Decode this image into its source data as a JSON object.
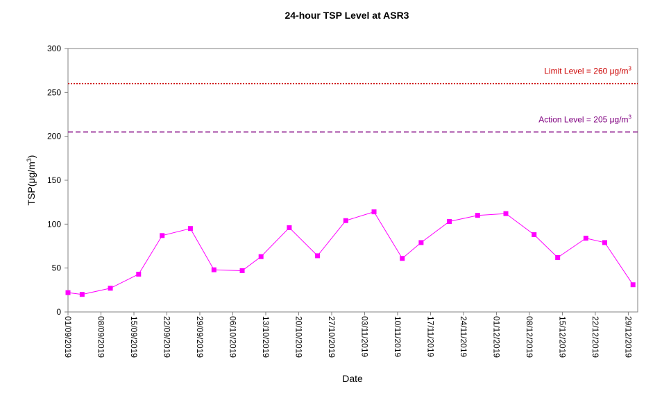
{
  "chart_data": {
    "type": "line",
    "title": "24-hour TSP Level at ASR3",
    "x_label": "Date",
    "y_label": {
      "text": "TSP(μg/m",
      "sup": "3",
      "tail": ")"
    },
    "x": [
      "01/09/2019",
      "04/09/2019",
      "10/09/2019",
      "16/09/2019",
      "21/09/2019",
      "27/09/2019",
      "02/10/2019",
      "08/10/2019",
      "12/10/2019",
      "18/10/2019",
      "24/10/2019",
      "30/10/2019",
      "05/11/2019",
      "11/11/2019",
      "15/11/2019",
      "21/11/2019",
      "27/11/2019",
      "03/12/2019",
      "09/12/2019",
      "14/12/2019",
      "20/12/2019",
      "24/12/2019",
      "30/12/2019"
    ],
    "series": [
      {
        "color": "#ff00ff",
        "marker": "square",
        "values": [
          22,
          20,
          27,
          43,
          87,
          95,
          48,
          47,
          63,
          96,
          64,
          104,
          114,
          61,
          79,
          103,
          110,
          112,
          88,
          62,
          84,
          79,
          31
        ]
      }
    ],
    "xlim": [
      "01/09/2019",
      "31/12/2019"
    ],
    "xticks": [
      "01/09/2019",
      "08/09/2019",
      "15/09/2019",
      "22/09/2019",
      "29/09/2019",
      "06/10/2019",
      "13/10/2019",
      "20/10/2019",
      "27/10/2019",
      "03/11/2019",
      "10/11/2019",
      "17/11/2019",
      "24/11/2019",
      "01/12/2019",
      "08/12/2019",
      "15/12/2019",
      "22/12/2019",
      "29/12/2019"
    ],
    "ylim": [
      0,
      300
    ],
    "yticks": [
      0,
      50,
      100,
      150,
      200,
      250,
      300
    ],
    "reference_lines": [
      {
        "value": 260,
        "text": "Limit Level  = 260 μg/m",
        "sup": "3",
        "color": "#cc0000",
        "dash": "2,2"
      },
      {
        "value": 205,
        "text": "Action Level  = 205 μg/m",
        "sup": "3",
        "color": "#800080",
        "dash": "7,4"
      }
    ]
  }
}
